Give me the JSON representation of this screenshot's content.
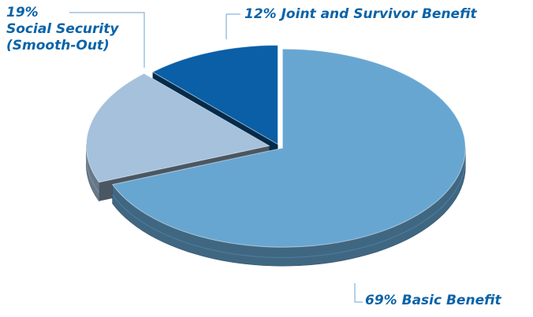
{
  "chart_data": {
    "type": "pie",
    "title": "",
    "slices": [
      {
        "name": "Basic Benefit",
        "value": 69,
        "label": "69% Basic Benefit",
        "color": "#68a6d2"
      },
      {
        "name": "Social Security (Smooth-Out)",
        "value": 19,
        "label_lines": [
          "19%",
          "Social Security",
          "(Smooth-Out)"
        ],
        "color": "#a5c1dc"
      },
      {
        "name": "Joint and Survivor Benefit",
        "value": 12,
        "label": "12% Joint and Survivor Benefit",
        "color": "#0a5fa6"
      }
    ],
    "style": "3d-exploded",
    "legend": "none"
  }
}
